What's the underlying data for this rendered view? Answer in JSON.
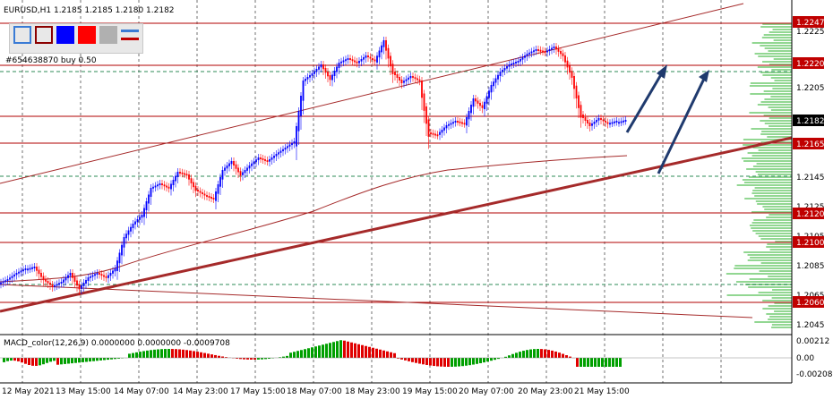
{
  "header": {
    "symbol_info": "EURUSD,H1  1.2185 1.2185 1.2180 1.2182",
    "order_label": "#654638870 buy 0.50"
  },
  "toolbar": [
    {
      "icon": "outline-square-icon",
      "fill": "#e8e8e8",
      "border": "#3a7bd5"
    },
    {
      "icon": "dark-red-outline-square-icon",
      "fill": "#e8e8e8",
      "border": "#8b0000"
    },
    {
      "icon": "blue-square-icon",
      "fill": "#0000ff",
      "border": "#0000ff"
    },
    {
      "icon": "red-square-icon",
      "fill": "#ff0000",
      "border": "#ff0000"
    },
    {
      "icon": "gray-square-icon",
      "fill": "#b0b0b0",
      "border": "#b0b0b0"
    },
    {
      "icon": "line-style-icon",
      "fill": "#e8e8e8",
      "border": "#e8e8e8"
    }
  ],
  "price_axis": {
    "ticks": [
      "1.2225",
      "1.2205",
      "1.2145",
      "1.2125",
      "1.2105",
      "1.2085",
      "1.2065",
      "1.2045"
    ],
    "red_levels": [
      "1.2247",
      "1.2220",
      "1.2165",
      "1.2120",
      "1.2100",
      "1.2060"
    ],
    "current_price": "1.2182"
  },
  "time_axis": {
    "labels": [
      "12 May 2021",
      "13 May 15:00",
      "14 May 07:00",
      "14 May 23:00",
      "17 May 15:00",
      "18 May 07:00",
      "18 May 23:00",
      "19 May 15:00",
      "20 May 07:00",
      "20 May 23:00",
      "21 May 15:00"
    ]
  },
  "macd": {
    "label": "MACD_color(12,26,9) 0.0000000 0.0000000 -0.0009708",
    "ticks": [
      "0.00212",
      "0.00",
      "-0.00208"
    ]
  },
  "colors": {
    "bull": "#0000ff",
    "bear": "#ff0000",
    "level": "#b00000",
    "trend": "#a52a2a",
    "arrow": "#1f3a6e",
    "volume_profile": "#7fd07f"
  }
}
